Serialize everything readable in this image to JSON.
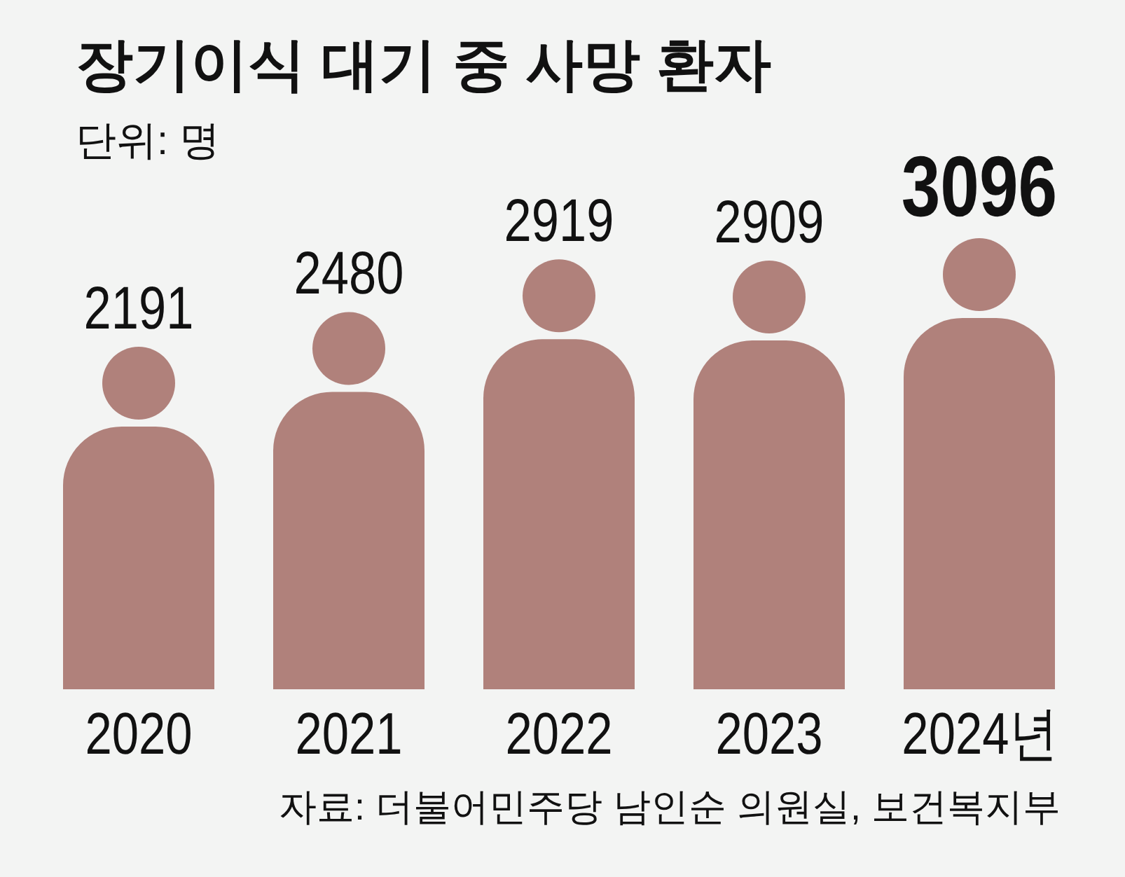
{
  "chart_data": {
    "type": "bar",
    "title": "장기이식 대기 중 사망 환자",
    "subtitle": "단위: 명",
    "categories": [
      "2020",
      "2021",
      "2022",
      "2023",
      "2024년"
    ],
    "values": [
      2191,
      2480,
      2919,
      2909,
      3096
    ],
    "color": "#b0817b",
    "data_labels": true,
    "annotations": [
      "자료: 더불어민주당 남인순 의원실, 보건복지부"
    ]
  }
}
